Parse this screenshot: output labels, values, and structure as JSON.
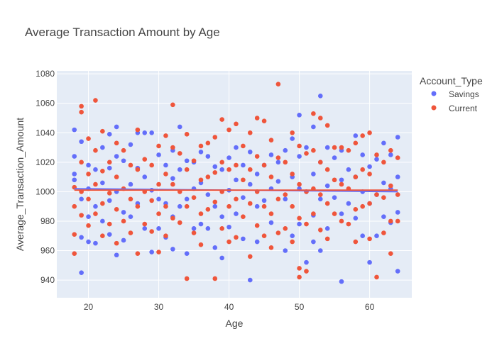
{
  "chart_data": {
    "type": "scatter",
    "title": "Average Transaction Amount by Age",
    "xlabel": "Age",
    "ylabel": "Average_Transaction_Amount",
    "xlim": [
      15.5,
      66
    ],
    "ylim": [
      928,
      1082
    ],
    "x_ticks": [
      20,
      30,
      40,
      50,
      60
    ],
    "y_ticks": [
      940,
      960,
      980,
      1000,
      1020,
      1040,
      1060,
      1080
    ],
    "grid": true,
    "legend_title": "Account_Type",
    "legend_position": "right",
    "series": [
      {
        "name": "Savings",
        "color": "#636efa",
        "trend": [
          [
            18,
            1002
          ],
          [
            64,
            1000
          ]
        ],
        "points": [
          [
            18,
            1042
          ],
          [
            18,
            1024
          ],
          [
            18,
            1012
          ],
          [
            18,
            1008
          ],
          [
            19,
            1034
          ],
          [
            19,
            995
          ],
          [
            19,
            969
          ],
          [
            19,
            945
          ],
          [
            20,
            1018
          ],
          [
            20,
            1002
          ],
          [
            20,
            983
          ],
          [
            20,
            966
          ],
          [
            21,
            1015
          ],
          [
            21,
            990
          ],
          [
            21,
            965
          ],
          [
            22,
            1030
          ],
          [
            22,
            1006
          ],
          [
            22,
            980
          ],
          [
            23,
            1039
          ],
          [
            23,
            1016
          ],
          [
            23,
            994
          ],
          [
            23,
            971
          ],
          [
            24,
            1044
          ],
          [
            24,
            1024
          ],
          [
            24,
            1000
          ],
          [
            24,
            957
          ],
          [
            25,
            1021
          ],
          [
            25,
            986
          ],
          [
            25,
            967
          ],
          [
            26,
            1032
          ],
          [
            26,
            1005
          ],
          [
            26,
            983
          ],
          [
            27,
            1040
          ],
          [
            27,
            1016
          ],
          [
            27,
            992
          ],
          [
            28,
            1040
          ],
          [
            28,
            1010
          ],
          [
            28,
            975
          ],
          [
            29,
            1040
          ],
          [
            29,
            1001
          ],
          [
            29,
            959
          ],
          [
            30,
            1025
          ],
          [
            30,
            995
          ],
          [
            30,
            975
          ],
          [
            31,
            1018
          ],
          [
            31,
            992
          ],
          [
            31,
            969
          ],
          [
            32,
            1028
          ],
          [
            32,
            1009
          ],
          [
            32,
            983
          ],
          [
            32,
            961
          ],
          [
            33,
            1044
          ],
          [
            33,
            1015
          ],
          [
            33,
            990
          ],
          [
            34,
            1021
          ],
          [
            34,
            995
          ],
          [
            34,
            958
          ],
          [
            35,
            1020
          ],
          [
            35,
            1002
          ],
          [
            35,
            975
          ],
          [
            36,
            1027
          ],
          [
            36,
            1006
          ],
          [
            36,
            978
          ],
          [
            37,
            1024
          ],
          [
            37,
            998
          ],
          [
            37,
            975
          ],
          [
            38,
            1017
          ],
          [
            38,
            990
          ],
          [
            38,
            962
          ],
          [
            39,
            1015
          ],
          [
            39,
            983
          ],
          [
            39,
            955
          ],
          [
            40,
            1023
          ],
          [
            40,
            1001
          ],
          [
            40,
            976
          ],
          [
            41,
            1030
          ],
          [
            41,
            1008
          ],
          [
            41,
            985
          ],
          [
            42,
            1018
          ],
          [
            42,
            996
          ],
          [
            42,
            968
          ],
          [
            43,
            1027
          ],
          [
            43,
            1005
          ],
          [
            43,
            940
          ],
          [
            44,
            1012
          ],
          [
            44,
            990
          ],
          [
            44,
            966
          ],
          [
            45,
            1018
          ],
          [
            45,
            994
          ],
          [
            46,
            1025
          ],
          [
            46,
            1002
          ],
          [
            46,
            979
          ],
          [
            47,
            1020
          ],
          [
            47,
            1007
          ],
          [
            48,
            1028
          ],
          [
            48,
            995
          ],
          [
            48,
            960
          ],
          [
            49,
            1036
          ],
          [
            49,
            1010
          ],
          [
            49,
            970
          ],
          [
            50,
            1052
          ],
          [
            50,
            1024
          ],
          [
            50,
            1002
          ],
          [
            50,
            978
          ],
          [
            51,
            1030
          ],
          [
            51,
            1000
          ],
          [
            51,
            952
          ],
          [
            52,
            1044
          ],
          [
            52,
            1012
          ],
          [
            52,
            984
          ],
          [
            52,
            966
          ],
          [
            53,
            1065
          ],
          [
            53,
            1020
          ],
          [
            53,
            995
          ],
          [
            53,
            960
          ],
          [
            54,
            1030
          ],
          [
            54,
            1004
          ],
          [
            54,
            975
          ],
          [
            55,
            1023
          ],
          [
            55,
            996
          ],
          [
            56,
            1028
          ],
          [
            56,
            1008
          ],
          [
            56,
            985
          ],
          [
            56,
            939
          ],
          [
            57,
            1015
          ],
          [
            57,
            992
          ],
          [
            58,
            1038
          ],
          [
            58,
            1010
          ],
          [
            58,
            982
          ],
          [
            59,
            1025
          ],
          [
            59,
            1000
          ],
          [
            59,
            970
          ],
          [
            60,
            1017
          ],
          [
            60,
            992
          ],
          [
            60,
            952
          ],
          [
            61,
            1022
          ],
          [
            61,
            998
          ],
          [
            61,
            970
          ],
          [
            62,
            1033
          ],
          [
            62,
            1006
          ],
          [
            62,
            983
          ],
          [
            63,
            1025
          ],
          [
            63,
            1002
          ],
          [
            63,
            979
          ],
          [
            64,
            1037
          ],
          [
            64,
            1010
          ],
          [
            64,
            986
          ],
          [
            64,
            946
          ]
        ]
      },
      {
        "name": "Current",
        "color": "#ef553b",
        "trend": [
          [
            18,
            1001
          ],
          [
            64,
            1001
          ]
        ],
        "points": [
          [
            18,
            1003
          ],
          [
            18,
            990
          ],
          [
            18,
            971
          ],
          [
            18,
            958
          ],
          [
            19,
            1058
          ],
          [
            19,
            1054
          ],
          [
            19,
            1020
          ],
          [
            19,
            1000
          ],
          [
            19,
            984
          ],
          [
            20,
            1036
          ],
          [
            20,
            1012
          ],
          [
            20,
            995
          ],
          [
            20,
            977
          ],
          [
            21,
            1062
          ],
          [
            21,
            1028
          ],
          [
            21,
            1005
          ],
          [
            21,
            985
          ],
          [
            22,
            1041
          ],
          [
            22,
            1014
          ],
          [
            22,
            992
          ],
          [
            22,
            970
          ],
          [
            23,
            1020
          ],
          [
            23,
            999
          ],
          [
            23,
            978
          ],
          [
            24,
            1033
          ],
          [
            24,
            1010
          ],
          [
            24,
            988
          ],
          [
            24,
            965
          ],
          [
            25,
            1028
          ],
          [
            25,
            1002
          ],
          [
            25,
            980
          ],
          [
            26,
            1018
          ],
          [
            26,
            995
          ],
          [
            26,
            972
          ],
          [
            27,
            1042
          ],
          [
            27,
            1015
          ],
          [
            27,
            990
          ],
          [
            27,
            958
          ],
          [
            28,
            1022
          ],
          [
            28,
            1000
          ],
          [
            28,
            978
          ],
          [
            29,
            1018
          ],
          [
            29,
            994
          ],
          [
            29,
            973
          ],
          [
            30,
            1031
          ],
          [
            30,
            1005
          ],
          [
            30,
            985
          ],
          [
            30,
            959
          ],
          [
            31,
            1038
          ],
          [
            31,
            1012
          ],
          [
            31,
            990
          ],
          [
            31,
            970
          ],
          [
            32,
            1059
          ],
          [
            32,
            1030
          ],
          [
            32,
            1005
          ],
          [
            32,
            982
          ],
          [
            33,
            1026
          ],
          [
            33,
            1000
          ],
          [
            33,
            979
          ],
          [
            34,
            1039
          ],
          [
            34,
            1015
          ],
          [
            34,
            990
          ],
          [
            34,
            941
          ],
          [
            35,
            1021
          ],
          [
            35,
            996
          ],
          [
            35,
            972
          ],
          [
            36,
            1031
          ],
          [
            36,
            1008
          ],
          [
            36,
            985
          ],
          [
            36,
            964
          ],
          [
            37,
            1033
          ],
          [
            37,
            1010
          ],
          [
            37,
            988
          ],
          [
            38,
            1037
          ],
          [
            38,
            1013
          ],
          [
            38,
            993
          ],
          [
            38,
            941
          ],
          [
            39,
            1049
          ],
          [
            39,
            1020
          ],
          [
            39,
            1000
          ],
          [
            39,
            975
          ],
          [
            40,
            1042
          ],
          [
            40,
            1015
          ],
          [
            40,
            990
          ],
          [
            40,
            966
          ],
          [
            41,
            1046
          ],
          [
            41,
            1018
          ],
          [
            41,
            995
          ],
          [
            41,
            969
          ],
          [
            42,
            1031
          ],
          [
            42,
            1008
          ],
          [
            42,
            983
          ],
          [
            43,
            1040
          ],
          [
            43,
            1015
          ],
          [
            43,
            992
          ],
          [
            43,
            956
          ],
          [
            44,
            1050
          ],
          [
            44,
            1024
          ],
          [
            44,
            1000
          ],
          [
            44,
            977
          ],
          [
            45,
            1048
          ],
          [
            45,
            1018
          ],
          [
            45,
            990
          ],
          [
            45,
            970
          ],
          [
            46,
            1035
          ],
          [
            46,
            1010
          ],
          [
            46,
            985
          ],
          [
            46,
            962
          ],
          [
            47,
            1073
          ],
          [
            47,
            1023
          ],
          [
            47,
            995
          ],
          [
            47,
            972
          ],
          [
            48,
            1020
          ],
          [
            48,
            998
          ],
          [
            48,
            975
          ],
          [
            49,
            1040
          ],
          [
            49,
            1012
          ],
          [
            49,
            990
          ],
          [
            49,
            966
          ],
          [
            50,
            1031
          ],
          [
            50,
            1005
          ],
          [
            50,
            982
          ],
          [
            50,
            948
          ],
          [
            50,
            942
          ],
          [
            51,
            1026
          ],
          [
            51,
            1000
          ],
          [
            51,
            978
          ],
          [
            51,
            946
          ],
          [
            52,
            1053
          ],
          [
            52,
            1028
          ],
          [
            52,
            1002
          ],
          [
            52,
            985
          ],
          [
            53,
            1050
          ],
          [
            53,
            1020
          ],
          [
            53,
            998
          ],
          [
            53,
            974
          ],
          [
            54,
            1045
          ],
          [
            54,
            1015
          ],
          [
            54,
            992
          ],
          [
            54,
            968
          ],
          [
            55,
            1030
          ],
          [
            55,
            1008
          ],
          [
            55,
            985
          ],
          [
            56,
            1030
          ],
          [
            56,
            1005
          ],
          [
            56,
            980
          ],
          [
            57,
            1028
          ],
          [
            57,
            1002
          ],
          [
            57,
            978
          ],
          [
            58,
            1033
          ],
          [
            58,
            1010
          ],
          [
            58,
            988
          ],
          [
            58,
            966
          ],
          [
            59,
            1038
          ],
          [
            59,
            1015
          ],
          [
            59,
            990
          ],
          [
            60,
            1040
          ],
          [
            60,
            1012
          ],
          [
            60,
            992
          ],
          [
            60,
            968
          ],
          [
            61,
            1025
          ],
          [
            61,
            998
          ],
          [
            61,
            942
          ],
          [
            62,
            1020
          ],
          [
            62,
            996
          ],
          [
            62,
            972
          ],
          [
            63,
            1028
          ],
          [
            63,
            1004
          ],
          [
            63,
            980
          ],
          [
            63,
            958
          ],
          [
            64,
            1023
          ],
          [
            64,
            998
          ],
          [
            64,
            980
          ]
        ]
      }
    ]
  }
}
